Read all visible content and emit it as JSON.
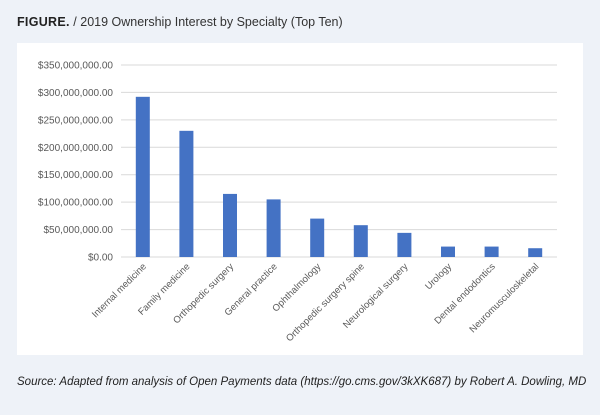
{
  "figure": {
    "label": "FIGURE.",
    "separator": "/",
    "title": "2019 Ownership Interest by Specialty (Top Ten)"
  },
  "source": "Source: Adapted from analysis of Open Payments data (https://go.cms.gov/3kXK687) by Robert A. Dowling, MD",
  "colors": {
    "bar": "#4472c4",
    "grid": "#d9d9d9",
    "axis_text": "#595959"
  },
  "chart_data": {
    "type": "bar",
    "title": "2019 Ownership Interest by Specialty (Top Ten)",
    "xlabel": "",
    "ylabel": "",
    "ylim": [
      0,
      350000000
    ],
    "yticks": [
      0,
      50000000,
      100000000,
      150000000,
      200000000,
      250000000,
      300000000,
      350000000
    ],
    "ytick_labels": [
      "$0.00",
      "$50,000,000.00",
      "$100,000,000.00",
      "$150,000,000.00",
      "$200,000,000.00",
      "$250,000,000.00",
      "$300,000,000.00",
      "$350,000,000.00"
    ],
    "grid": true,
    "legend": "none",
    "categories": [
      "Internal medicine",
      "Family medicine",
      "Orthopedic surgery",
      "General practice",
      "Ophthalmology",
      "Orthopedic surgery spine",
      "Neurological surgery",
      "Urology",
      "Dental endodontics",
      "Neuromusculoskeletal"
    ],
    "values": [
      292000000,
      230000000,
      115000000,
      105000000,
      70000000,
      58000000,
      44000000,
      19000000,
      19000000,
      16000000
    ]
  }
}
